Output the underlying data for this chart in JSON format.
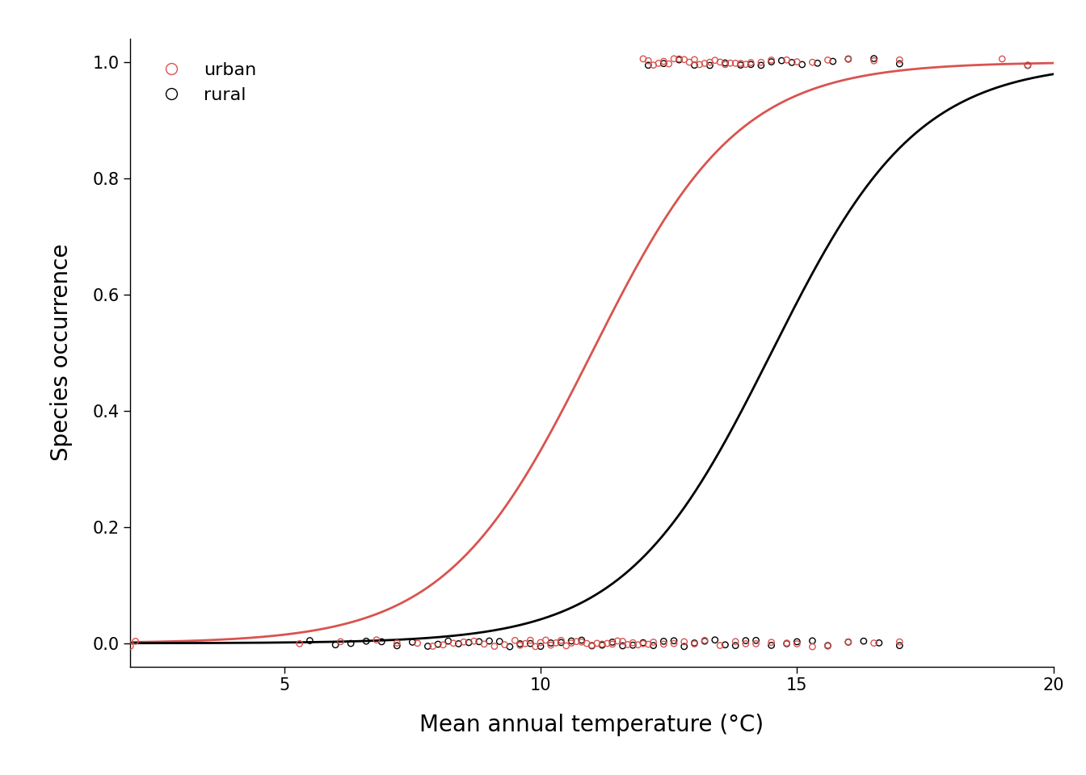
{
  "title": "",
  "xlabel": "Mean annual temperature (°C)",
  "ylabel": "Species occurrence",
  "xlim": [
    2,
    20
  ],
  "ylim": [
    -0.04,
    1.04
  ],
  "xticks": [
    5,
    10,
    15,
    20
  ],
  "yticks": [
    0.0,
    0.2,
    0.4,
    0.6,
    0.8,
    1.0
  ],
  "urban_color": "#d9534f",
  "rural_color": "#000000",
  "urban_logit_intercept": -7.7,
  "urban_logit_slope": 0.7,
  "rural_logit_intercept": -10.15,
  "rural_logit_slope": 0.7,
  "background_color": "#ffffff",
  "figwidth": 13.44,
  "figheight": 9.6,
  "urban_x0": [
    2.0,
    2.1,
    5.3,
    6.1,
    6.8,
    7.2,
    7.6,
    7.9,
    8.1,
    8.3,
    8.5,
    8.7,
    8.9,
    9.1,
    9.3,
    9.5,
    9.6,
    9.7,
    9.8,
    9.9,
    10.0,
    10.1,
    10.2,
    10.3,
    10.4,
    10.5,
    10.6,
    10.7,
    10.8,
    10.9,
    11.0,
    11.1,
    11.2,
    11.3,
    11.4,
    11.5,
    11.6,
    11.7,
    11.8,
    11.9,
    12.0,
    12.1,
    12.2,
    12.4,
    12.6,
    12.8,
    13.0,
    13.2,
    13.5,
    13.8,
    14.0,
    14.2,
    14.5,
    14.8,
    15.0,
    15.3,
    15.6,
    16.0,
    16.5,
    17.0
  ],
  "urban_x1": [
    12.0,
    12.1,
    12.2,
    12.3,
    12.4,
    12.5,
    12.6,
    12.7,
    12.8,
    12.9,
    13.0,
    13.1,
    13.2,
    13.3,
    13.4,
    13.5,
    13.6,
    13.7,
    13.8,
    13.9,
    14.0,
    14.1,
    14.3,
    14.5,
    14.8,
    15.0,
    15.3,
    15.6,
    16.0,
    16.5,
    17.0,
    19.0,
    19.5
  ],
  "rural_x0": [
    5.5,
    6.0,
    6.3,
    6.6,
    6.9,
    7.2,
    7.5,
    7.8,
    8.0,
    8.2,
    8.4,
    8.6,
    8.8,
    9.0,
    9.2,
    9.4,
    9.6,
    9.8,
    10.0,
    10.2,
    10.4,
    10.6,
    10.8,
    11.0,
    11.2,
    11.4,
    11.6,
    11.8,
    12.0,
    12.2,
    12.4,
    12.6,
    12.8,
    13.0,
    13.2,
    13.4,
    13.6,
    13.8,
    14.0,
    14.2,
    14.5,
    14.8,
    15.0,
    15.3,
    15.6,
    16.0,
    16.3,
    16.6,
    17.0
  ],
  "rural_x1": [
    12.1,
    12.4,
    12.7,
    13.0,
    13.3,
    13.6,
    13.9,
    14.1,
    14.3,
    14.5,
    14.7,
    14.9,
    15.1,
    15.4,
    15.7,
    16.0,
    16.5,
    17.0,
    19.5
  ]
}
